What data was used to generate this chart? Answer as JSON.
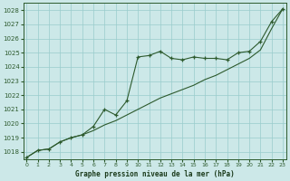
{
  "bg_color": "#cce8e8",
  "grid_color": "#99cccc",
  "line_color": "#2d5a2d",
  "title": "Graphe pression niveau de la mer (hPa)",
  "title_color": "#1a3a1a",
  "xlim": [
    -0.3,
    23.3
  ],
  "ylim": [
    1017.5,
    1028.5
  ],
  "yticks": [
    1018,
    1019,
    1020,
    1021,
    1022,
    1023,
    1024,
    1025,
    1026,
    1027,
    1028
  ],
  "xticks": [
    0,
    1,
    2,
    3,
    4,
    5,
    6,
    7,
    8,
    9,
    10,
    11,
    12,
    13,
    14,
    15,
    16,
    17,
    18,
    19,
    20,
    21,
    22,
    23
  ],
  "series1_x": [
    0,
    1,
    2,
    3,
    4,
    5,
    6,
    7,
    8,
    9,
    10,
    11,
    12,
    13,
    14,
    15,
    16,
    17,
    18,
    19,
    20,
    21,
    22,
    23
  ],
  "series1_y": [
    1017.6,
    1018.1,
    1018.2,
    1018.7,
    1019.0,
    1019.2,
    1019.8,
    1021.0,
    1020.6,
    1021.6,
    1024.7,
    1024.8,
    1025.1,
    1024.6,
    1024.5,
    1024.7,
    1024.6,
    1024.6,
    1024.5,
    1025.0,
    1025.1,
    1025.8,
    1027.2,
    1028.1
  ],
  "series2_x": [
    0,
    1,
    2,
    3,
    4,
    5,
    6,
    7,
    8,
    9,
    10,
    11,
    12,
    13,
    14,
    15,
    16,
    17,
    18,
    19,
    20,
    21,
    22,
    23
  ],
  "series2_y": [
    1017.6,
    1018.1,
    1018.2,
    1018.7,
    1019.0,
    1019.2,
    1019.5,
    1019.9,
    1020.2,
    1020.6,
    1021.0,
    1021.4,
    1021.8,
    1022.1,
    1022.4,
    1022.7,
    1023.1,
    1023.4,
    1023.8,
    1024.2,
    1024.6,
    1025.2,
    1026.7,
    1028.1
  ]
}
